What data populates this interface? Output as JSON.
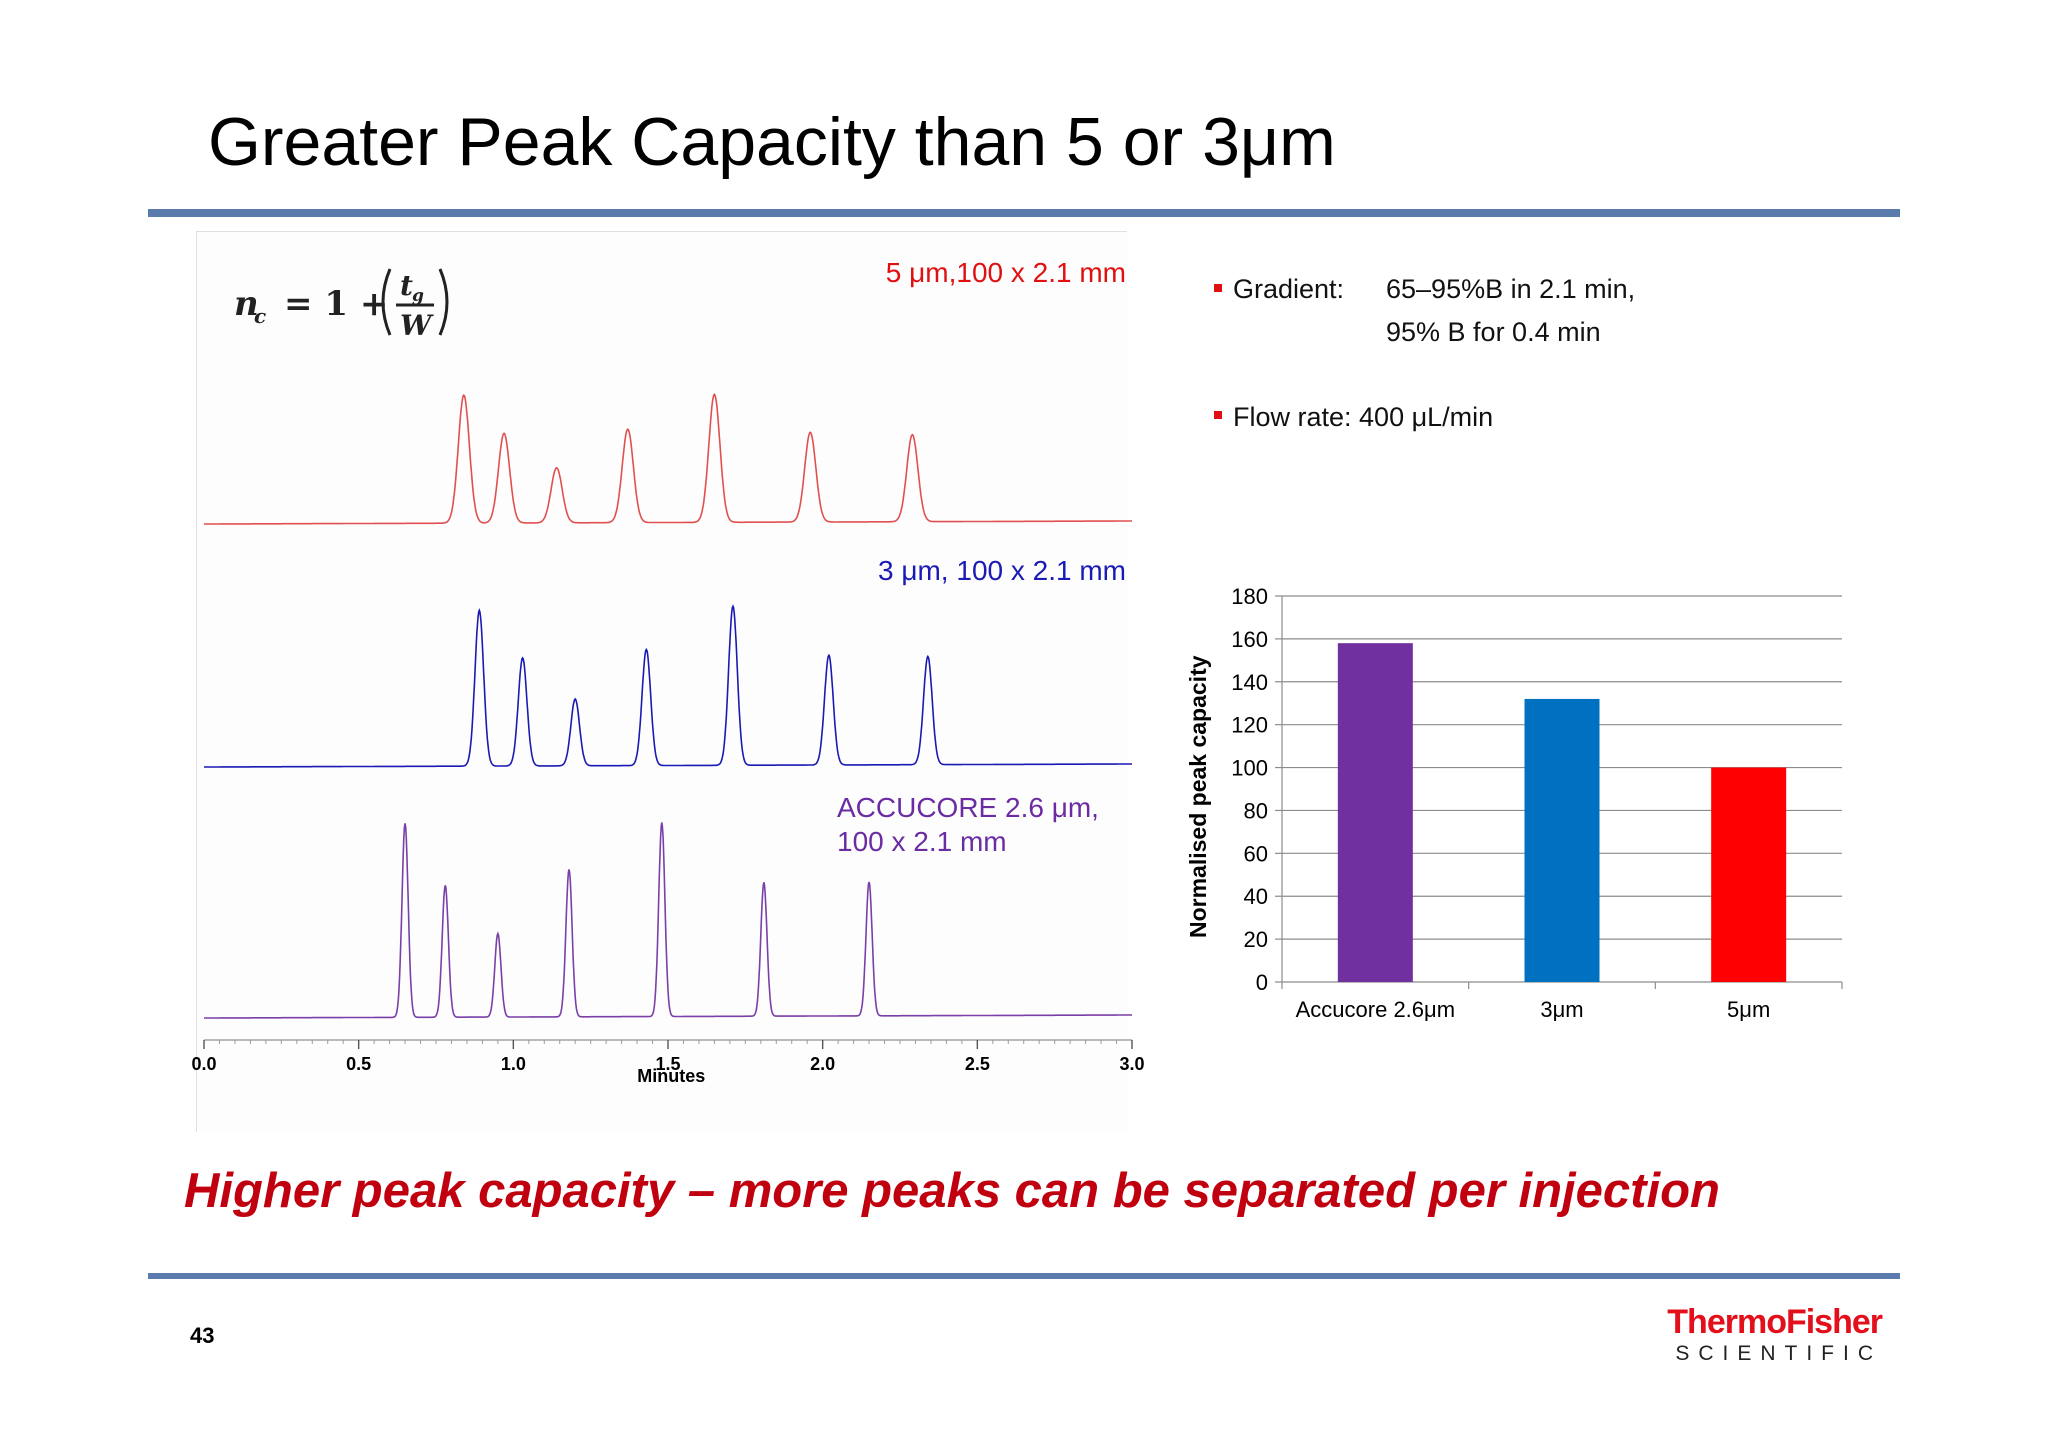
{
  "slide": {
    "title": "Greater Peak Capacity than 5 or 3μm",
    "conclusion": "Higher peak capacity – more peaks can be separated per injection",
    "page_number": "43",
    "logo_top": "ThermoFisher",
    "logo_bottom": "SCIENTIFIC",
    "formula": "n_c = 1 + (t_g / W)",
    "bullets": [
      {
        "label": "Gradient:",
        "lines": [
          "65–95%B in 2.1 min,",
          "95% B for 0.4 min"
        ]
      },
      {
        "label": "Flow rate: 400 μL/min",
        "lines": []
      }
    ],
    "colors": {
      "rule": "#5b7bad",
      "accent_red": "#c0000f"
    }
  },
  "chart_data": [
    {
      "type": "line",
      "xlabel": "Minutes",
      "xlim": [
        0.0,
        3.0
      ],
      "x_ticks": [
        "0.0",
        "0.5",
        "1.0",
        "1.5",
        "2.0",
        "2.5",
        "3.0"
      ],
      "series": [
        {
          "name": "5 μm,100 x 2.1 mm",
          "color": "#e05050",
          "peaks": [
            {
              "t": 0.84,
              "h": 1.0
            },
            {
              "t": 0.97,
              "h": 0.7
            },
            {
              "t": 1.14,
              "h": 0.43
            },
            {
              "t": 1.37,
              "h": 0.73
            },
            {
              "t": 1.65,
              "h": 1.0
            },
            {
              "t": 1.96,
              "h": 0.7
            },
            {
              "t": 2.29,
              "h": 0.68
            }
          ]
        },
        {
          "name": "3 μm, 100 x 2.1 mm",
          "color": "#1a1ab4",
          "peaks": [
            {
              "t": 0.89,
              "h": 0.98
            },
            {
              "t": 1.03,
              "h": 0.68
            },
            {
              "t": 1.2,
              "h": 0.42
            },
            {
              "t": 1.43,
              "h": 0.73
            },
            {
              "t": 1.71,
              "h": 1.0
            },
            {
              "t": 2.02,
              "h": 0.69
            },
            {
              "t": 2.34,
              "h": 0.68
            }
          ]
        },
        {
          "name": "ACCUCORE 2.6 μm,\n100 x 2.1 mm",
          "color": "#7a3fa8",
          "peaks": [
            {
              "t": 0.65,
              "h": 1.0
            },
            {
              "t": 0.78,
              "h": 0.68
            },
            {
              "t": 0.95,
              "h": 0.43
            },
            {
              "t": 1.18,
              "h": 0.76
            },
            {
              "t": 1.48,
              "h": 1.0
            },
            {
              "t": 1.81,
              "h": 0.69
            },
            {
              "t": 2.15,
              "h": 0.69
            }
          ]
        }
      ]
    },
    {
      "type": "bar",
      "categories": [
        "Accucore 2.6μm",
        "3μm",
        "5μm"
      ],
      "values": [
        158,
        132,
        100
      ],
      "colors": [
        "#7030a0",
        "#0070c0",
        "#ff0000"
      ],
      "ylabel": "Normalised peak capacity",
      "ylim": [
        0,
        180
      ],
      "y_ticks": [
        0,
        20,
        40,
        60,
        80,
        100,
        120,
        140,
        160,
        180
      ],
      "grid": true
    }
  ]
}
